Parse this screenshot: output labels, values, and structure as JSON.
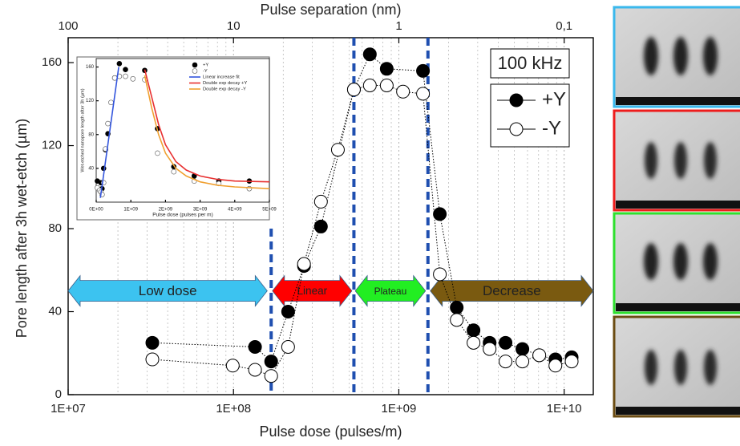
{
  "chart_data": [
    {
      "type": "scatter",
      "xscale": "log",
      "xlabel": "Pulse dose (pulses/m)",
      "ylabel": "Pore length after 3h wet-etch (µm)",
      "x2label": "Pulse separation (nm)",
      "xlim": [
        10000000.0,
        15000000000.0
      ],
      "ylim": [
        0,
        172
      ],
      "xticks": [
        {
          "value": 10000000.0,
          "label": "1E+07"
        },
        {
          "value": 100000000.0,
          "label": "1E+08"
        },
        {
          "value": 1000000000.0,
          "label": "1E+09"
        },
        {
          "value": 10000000000.0,
          "label": "1E+10"
        }
      ],
      "xminor_ticks": [
        20000000.0,
        30000000.0,
        40000000.0,
        50000000.0,
        60000000.0,
        70000000.0,
        80000000.0,
        90000000.0,
        200000000.0,
        300000000.0,
        400000000.0,
        500000000.0,
        600000000.0,
        700000000.0,
        800000000.0,
        900000000.0,
        2000000000.0,
        3000000000.0,
        4000000000.0,
        5000000000.0,
        6000000000.0,
        7000000000.0,
        8000000000.0,
        9000000000.0
      ],
      "yticks": [
        0,
        40,
        80,
        120,
        160
      ],
      "x2lim": [
        100,
        0.0667
      ],
      "x2ticks": [
        100,
        10,
        1,
        {
          "value": 0.1,
          "label": "0,1"
        }
      ],
      "grid": "x",
      "annotation": "100 kHz",
      "legend": "upper right",
      "series": [
        {
          "name": "+Y",
          "color": "#000000",
          "marker": "filled",
          "line_style": "dotted",
          "x": [
            32300000.0,
            135000000.0,
            169000000.0,
            214000000.0,
            267000000.0,
            338000000.0,
            535000000.0,
            668000000.0,
            845000000.0,
            1400000000.0,
            1770000000.0,
            2240000000.0,
            2830000000.0,
            3540000000.0,
            4420000000.0,
            5590000000.0,
            7070000000.0,
            8850000000.0,
            11100000000.0
          ],
          "values": [
            25,
            23,
            16,
            40,
            62,
            81,
            147,
            164,
            157,
            156,
            87,
            42,
            31,
            25,
            25,
            22,
            19,
            17,
            18
          ]
        },
        {
          "name": "-Y",
          "color": "#000000",
          "marker": "open",
          "line_style": "dotted",
          "x": [
            32300000.0,
            99000000.0,
            135000000.0,
            169000000.0,
            214000000.0,
            267000000.0,
            338000000.0,
            428000000.0,
            535000000.0,
            668000000.0,
            845000000.0,
            1060000000.0,
            1400000000.0,
            1770000000.0,
            2240000000.0,
            2830000000.0,
            3540000000.0,
            4420000000.0,
            5590000000.0,
            7070000000.0,
            8850000000.0,
            11100000000.0
          ],
          "values": [
            17,
            14,
            12,
            9,
            23,
            63,
            93,
            118,
            147,
            149,
            149,
            146,
            145,
            58,
            36,
            25,
            22,
            16,
            16,
            19,
            14,
            16
          ]
        }
      ],
      "vlines": [
        {
          "x": 169000000.0,
          "top": 80,
          "color": "#1f4fb0"
        },
        {
          "x": 535000000.0,
          "color": "#1f4fb0"
        },
        {
          "x": 1500000000.0,
          "color": "#1f4fb0"
        }
      ],
      "region_y": 50,
      "regions": [
        {
          "label": "Low dose",
          "color": "#3cc3f0",
          "text_color": "#000000",
          "from": 10000000.0,
          "to": 160000000.0
        },
        {
          "label": "Linear",
          "color": "#ff0000",
          "text_color": "#ffffff",
          "from": 172000000.0,
          "to": 520000000.0
        },
        {
          "label": "Plateau",
          "color": "#22ee22",
          "text_color": "#ffffff",
          "from": 545000000.0,
          "to": 1450000000.0
        },
        {
          "label": "Decrease",
          "color": "#7a5a10",
          "text_color": "#ffffff",
          "from": 1550000000.0,
          "to": 15000000000.0
        }
      ]
    },
    {
      "type": "scatter",
      "xscale": "linear",
      "xlabel": "Pulse dose (pulses per m)",
      "ylabel": "Wet-etched nanopore length after 3h (µm)",
      "xlim": [
        0,
        5000000000.0
      ],
      "ylim": [
        0,
        170
      ],
      "xticks": [
        {
          "value": 0,
          "label": "0E+00"
        },
        {
          "value": 1000000000.0,
          "label": "1E+09"
        },
        {
          "value": 2000000000.0,
          "label": "2E+09"
        },
        {
          "value": 3000000000.0,
          "label": "3E+09"
        },
        {
          "value": 4000000000.0,
          "label": "4E+09"
        },
        {
          "value": 5000000000.0,
          "label": "5E+09"
        }
      ],
      "yticks": [
        40,
        80,
        120,
        160
      ],
      "legend": "upper right",
      "series": [
        {
          "name": "+Y",
          "color": "#000000",
          "marker": "filled",
          "x": [
            32300000.0,
            135000000.0,
            169000000.0,
            214000000.0,
            267000000.0,
            338000000.0,
            535000000.0,
            668000000.0,
            845000000.0,
            1400000000.0,
            1770000000.0,
            2240000000.0,
            2830000000.0,
            3540000000.0,
            4420000000.0
          ],
          "values": [
            25,
            23,
            16,
            40,
            62,
            81,
            147,
            164,
            157,
            156,
            87,
            42,
            31,
            25,
            25
          ]
        },
        {
          "name": "-Y",
          "color": "#555555",
          "marker": "open",
          "x": [
            32300000.0,
            99000000.0,
            135000000.0,
            169000000.0,
            214000000.0,
            267000000.0,
            338000000.0,
            428000000.0,
            535000000.0,
            668000000.0,
            845000000.0,
            1060000000.0,
            1400000000.0,
            1770000000.0,
            2240000000.0,
            2830000000.0,
            3540000000.0,
            4420000000.0
          ],
          "values": [
            17,
            14,
            12,
            9,
            23,
            63,
            93,
            118,
            147,
            149,
            149,
            146,
            145,
            58,
            36,
            25,
            22,
            16
          ]
        },
        {
          "name": "Linear increase fit",
          "color": "#3355dd",
          "line_style": "solid",
          "x": [
            120000000.0,
            650000000.0
          ],
          "values": [
            5,
            160
          ]
        },
        {
          "name": "Double exp decay +Y",
          "color": "#e83030",
          "line_style": "solid",
          "x": [
            1400000000.0,
            1600000000.0,
            1800000000.0,
            2000000000.0,
            2300000000.0,
            2600000000.0,
            3000000000.0,
            3500000000.0,
            4000000000.0,
            5000000000.0
          ],
          "values": [
            157,
            125,
            92,
            68,
            48,
            38,
            31,
            27,
            25,
            24
          ]
        },
        {
          "name": "Double exp decay -Y",
          "color": "#f0a030",
          "line_style": "solid",
          "x": [
            1400000000.0,
            1600000000.0,
            1800000000.0,
            2000000000.0,
            2300000000.0,
            2600000000.0,
            3000000000.0,
            3500000000.0,
            4000000000.0,
            5000000000.0
          ],
          "values": [
            150,
            112,
            80,
            58,
            40,
            31,
            24,
            20,
            18,
            16
          ]
        }
      ]
    }
  ]
}
